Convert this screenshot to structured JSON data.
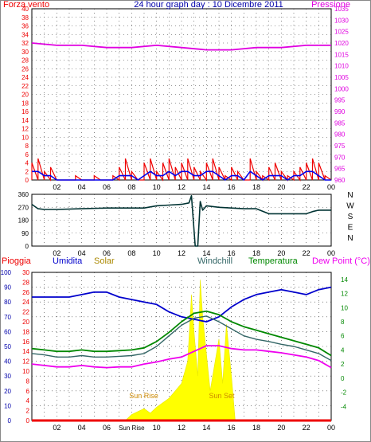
{
  "title": "24 hour graph day : 10 Dicembre 2011",
  "colors": {
    "wind": "#ee0000",
    "gust": "#ee0000",
    "wind_avg": "#0000ee",
    "pressure": "#e000e0",
    "direction": "#003333",
    "rain": "#ee0000",
    "humidity": "#0000cc",
    "solar": "#ffff00",
    "windchill": "#336666",
    "temperature": "#008800",
    "dewpoint": "#ee00ee",
    "grid": "#333333",
    "frame": "#888888"
  },
  "x_ticks": [
    "02",
    "04",
    "06",
    "08",
    "10",
    "12",
    "14",
    "16",
    "18",
    "20",
    "22",
    "00"
  ],
  "compass_letters": [
    "N",
    "W",
    "S",
    "E",
    "N"
  ],
  "chart_data": [
    {
      "type": "line",
      "ylabel": "Forza vento",
      "y2label": "Pressione",
      "ylim": [
        0,
        40
      ],
      "y2lim": [
        960,
        1035
      ],
      "yticks": [
        "0",
        "2",
        "4",
        "6",
        "8",
        "10",
        "12",
        "14",
        "16",
        "18",
        "20",
        "22",
        "24",
        "26",
        "28",
        "30",
        "32",
        "34",
        "36",
        "38",
        "40"
      ],
      "y2ticks": [
        "960",
        "965",
        "970",
        "975",
        "980",
        "985",
        "990",
        "995",
        "1000",
        "1005",
        "1010",
        "1015",
        "1020",
        "1025",
        "1030",
        "1035"
      ],
      "series": [
        {
          "kind": "gust",
          "x": [
            0.0,
            0.5,
            1.0,
            1.5,
            2.0,
            2.5,
            3.0,
            3.5,
            4.0,
            4.5,
            5.0,
            5.5,
            6.0,
            6.5,
            7.0,
            7.5,
            8.0,
            8.5,
            9.0,
            9.5,
            10.0,
            10.5,
            11.0,
            11.5,
            12.0,
            12.5,
            13.0,
            13.5,
            14.0,
            14.5,
            15.0,
            15.5,
            16.0,
            16.5,
            17.0,
            17.5,
            18.0,
            18.5,
            19.0,
            19.5,
            20.0,
            20.5,
            21.0,
            21.5,
            22.0,
            22.5,
            23.0,
            23.5,
            24.0
          ],
          "values": [
            4,
            5,
            2,
            3,
            0,
            0,
            0,
            1,
            0,
            0,
            1,
            0,
            0,
            1,
            3,
            5,
            2,
            0,
            4,
            5,
            2,
            4,
            5,
            3,
            4,
            5,
            3,
            2,
            4,
            5,
            3,
            1,
            3,
            2,
            0,
            5,
            2,
            1,
            3,
            4,
            2,
            1,
            2,
            3,
            4,
            5,
            4,
            1,
            0
          ]
        },
        {
          "kind": "wind_avg",
          "x": [
            0.0,
            0.5,
            1.0,
            1.5,
            2.0,
            2.5,
            3.0,
            3.5,
            4.0,
            4.5,
            5.0,
            5.5,
            6.0,
            6.5,
            7.0,
            7.5,
            8.0,
            8.5,
            9.0,
            9.5,
            10.0,
            10.5,
            11.0,
            11.5,
            12.0,
            12.5,
            13.0,
            13.5,
            14.0,
            14.5,
            15.0,
            15.5,
            16.0,
            16.5,
            17.0,
            17.5,
            18.0,
            18.5,
            19.0,
            19.5,
            20.0,
            20.5,
            21.0,
            21.5,
            22.0,
            22.5,
            23.0,
            23.5,
            24.0
          ],
          "values": [
            2,
            2,
            1,
            1,
            0,
            0,
            0,
            0,
            0,
            0,
            0,
            0,
            0,
            0,
            1,
            1,
            1,
            0,
            1,
            2,
            1,
            1,
            2,
            1,
            2,
            2,
            1,
            1,
            2,
            2,
            1,
            0,
            1,
            1,
            0,
            2,
            1,
            0,
            1,
            1,
            1,
            0,
            1,
            1,
            2,
            2,
            1,
            0,
            0
          ]
        },
        {
          "kind": "pressure",
          "x": [
            0,
            2,
            4,
            6,
            8,
            10,
            12,
            14,
            16,
            18,
            20,
            22,
            24
          ],
          "values": [
            1020,
            1019,
            1019,
            1018,
            1018,
            1019,
            1018,
            1017,
            1017,
            1018,
            1018,
            1019,
            1019
          ]
        }
      ]
    },
    {
      "type": "line",
      "ylim": [
        0,
        360
      ],
      "yticks": [
        "0",
        "90",
        "180",
        "270",
        "360"
      ],
      "series": [
        {
          "kind": "direction",
          "x": [
            0,
            0.5,
            1,
            2,
            4,
            6,
            8,
            9,
            10,
            11,
            12,
            12.6,
            12.8,
            13.1,
            13.3,
            13.5,
            13.7,
            14,
            15,
            16,
            17,
            18,
            19,
            20,
            21,
            22,
            22.5,
            23,
            24
          ],
          "values": [
            290,
            260,
            255,
            255,
            260,
            265,
            265,
            265,
            280,
            285,
            290,
            300,
            350,
            0,
            0,
            310,
            250,
            280,
            270,
            265,
            260,
            260,
            225,
            225,
            225,
            225,
            240,
            250,
            250
          ]
        }
      ]
    },
    {
      "type": "line",
      "series_labels": [
        "Pioggia",
        "Umidita",
        "Solar",
        "Windchill",
        "Temperatura",
        "Dew Point (°C)"
      ],
      "annotations": [
        "Sun Rise",
        "Sun Set"
      ],
      "sunrise_label": "Sun Rise",
      "rain_ylim": [
        0,
        100
      ],
      "rain_ticks": [
        "0",
        "10",
        "20",
        "30",
        "40",
        "50",
        "60",
        "70",
        "80",
        "90",
        "100"
      ],
      "humidity_ylim": [
        0,
        30
      ],
      "humidity_ticks": [
        "0",
        "2",
        "4",
        "6",
        "8",
        "10",
        "12",
        "14",
        "16",
        "18",
        "20",
        "22",
        "24",
        "26",
        "28",
        "30"
      ],
      "temp_ylim": [
        -6,
        15
      ],
      "temp_ticks": [
        "-4",
        "-2",
        "0",
        "2",
        "4",
        "6",
        "8",
        "10",
        "12",
        "14"
      ],
      "series": [
        {
          "kind": "rain",
          "x": [
            0,
            24
          ],
          "values": [
            0,
            0
          ]
        },
        {
          "kind": "humidity",
          "x": [
            0,
            1,
            2,
            3,
            4,
            5,
            6,
            7,
            8,
            9,
            10,
            11,
            12,
            13,
            14,
            15,
            16,
            17,
            18,
            19,
            20,
            21,
            22,
            23,
            24
          ],
          "values": [
            25,
            25,
            25,
            25,
            25.5,
            26,
            26,
            25,
            24.5,
            24,
            23.5,
            22,
            21,
            20.5,
            20,
            21,
            23,
            24.5,
            25.5,
            26,
            26.5,
            26,
            25.5,
            26.5,
            27
          ]
        },
        {
          "kind": "solar",
          "x": [
            7.5,
            8,
            8.5,
            9,
            9.5,
            10,
            10.5,
            11,
            11.5,
            12,
            12.5,
            12.8,
            13,
            13.3,
            13.5,
            13.7,
            14,
            14.3,
            14.6,
            15,
            15.3,
            15.6,
            16,
            16.3
          ],
          "values": [
            0,
            4,
            6,
            8,
            5,
            9,
            12,
            15,
            20,
            25,
            40,
            85,
            60,
            30,
            95,
            70,
            45,
            20,
            35,
            55,
            25,
            65,
            30,
            0
          ]
        },
        {
          "kind": "windchill",
          "x": [
            0,
            1,
            2,
            3,
            4,
            5,
            6,
            7,
            8,
            9,
            10,
            11,
            12,
            13,
            14,
            15,
            16,
            17,
            18,
            19,
            20,
            21,
            22,
            23,
            24
          ],
          "values": [
            3.5,
            3.3,
            3,
            3,
            3.2,
            3,
            3,
            3.1,
            3.2,
            3.5,
            4.5,
            6,
            7.5,
            8.5,
            8.8,
            8,
            7,
            6,
            5.5,
            5.2,
            4.8,
            4.5,
            4,
            3.5,
            2.5
          ]
        },
        {
          "kind": "temperature",
          "x": [
            0,
            1,
            2,
            3,
            4,
            5,
            6,
            7,
            8,
            9,
            10,
            11,
            12,
            13,
            14,
            15,
            16,
            17,
            18,
            19,
            20,
            21,
            22,
            23,
            24
          ],
          "values": [
            4.2,
            4,
            3.8,
            3.8,
            4,
            3.8,
            3.8,
            3.9,
            4,
            4.3,
            5.2,
            6.5,
            8,
            9.2,
            9.5,
            9,
            8,
            7.3,
            6.8,
            6.3,
            5.8,
            5.3,
            4.8,
            4.3,
            3.2
          ]
        },
        {
          "kind": "dewpoint",
          "x": [
            0,
            1,
            2,
            3,
            4,
            5,
            6,
            7,
            8,
            9,
            10,
            11,
            12,
            13,
            14,
            15,
            16,
            17,
            18,
            19,
            20,
            21,
            22,
            23,
            24
          ],
          "values": [
            2,
            1.8,
            1.6,
            1.6,
            1.8,
            1.6,
            1.5,
            1.6,
            1.6,
            2,
            2.3,
            2.7,
            3,
            3.8,
            4.6,
            4.6,
            4.2,
            4,
            4,
            3.8,
            3.6,
            3.3,
            3,
            2.5,
            1.5
          ]
        }
      ]
    }
  ]
}
